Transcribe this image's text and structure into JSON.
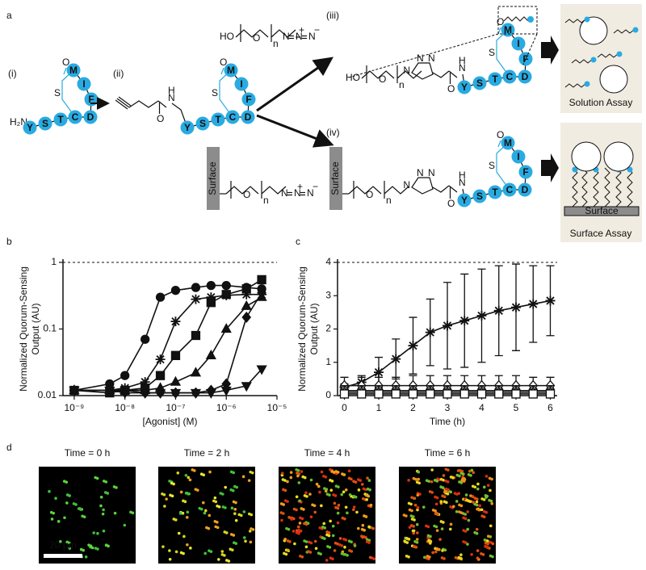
{
  "panel_a": {
    "label": "a",
    "steps": [
      "(i)",
      "(ii)",
      "(iii)",
      "(iv)"
    ],
    "residues": [
      "Y",
      "S",
      "T",
      "C",
      "D",
      "F",
      "I",
      "M"
    ],
    "amine": "H₂N",
    "hydroxyl": "HO",
    "oxygen": "O",
    "sulfur": "S",
    "repeat": "n",
    "nitrogen": "N",
    "hydrogen": "H",
    "plus": "+",
    "minus": "−",
    "surface": "Surface",
    "solution_assay": "Solution Assay",
    "surface_assay": "Surface Assay"
  },
  "chart_data": [
    {
      "type": "line",
      "label": "b",
      "xlabel": "[Agonist] (M)",
      "ylabel": [
        "Normalized Quorum-Sensing",
        "Output (AU)"
      ],
      "xscale": "log",
      "yscale": "log",
      "xlim": [
        6e-10,
        1e-05
      ],
      "ylim": [
        0.01,
        1
      ],
      "xticks": [
        {
          "value": 1e-09,
          "label": "10⁻⁹"
        },
        {
          "value": 1e-08,
          "label": "10⁻⁸"
        },
        {
          "value": 1e-07,
          "label": "10⁻⁷"
        },
        {
          "value": 1e-06,
          "label": "10⁻⁶"
        },
        {
          "value": 1e-05,
          "label": "10⁻⁵"
        }
      ],
      "yticks": [
        0.01,
        0.1,
        1
      ],
      "hline": 1,
      "color": "#111111",
      "x": [
        1e-09,
        5e-09,
        1e-08,
        2.5e-08,
        5e-08,
        1e-07,
        2.5e-07,
        5e-07,
        1e-06,
        2.5e-06,
        5e-06
      ],
      "series": [
        {
          "marker": "circle",
          "values": [
            0.012,
            0.015,
            0.02,
            0.07,
            0.3,
            0.38,
            0.42,
            0.45,
            0.45,
            0.42,
            0.4
          ]
        },
        {
          "marker": "star",
          "values": [
            0.012,
            0.012,
            0.013,
            0.016,
            0.035,
            0.13,
            0.28,
            0.3,
            0.32,
            0.33,
            0.33
          ]
        },
        {
          "marker": "square",
          "values": [
            0.012,
            0.011,
            0.012,
            0.013,
            0.02,
            0.04,
            0.08,
            0.25,
            0.33,
            0.4,
            0.55
          ]
        },
        {
          "marker": "triangle",
          "values": [
            0.012,
            0.012,
            0.012,
            0.012,
            0.013,
            0.016,
            0.022,
            0.04,
            0.1,
            0.22,
            0.3
          ]
        },
        {
          "marker": "diamond",
          "values": [
            0.012,
            0.012,
            0.012,
            0.011,
            0.011,
            0.011,
            0.011,
            0.012,
            0.015,
            0.15,
            0.35
          ]
        },
        {
          "marker": "triangle-down",
          "values": [
            0.012,
            0.012,
            0.011,
            0.011,
            0.011,
            0.011,
            0.011,
            0.011,
            0.012,
            0.014,
            0.025
          ]
        }
      ]
    },
    {
      "type": "line",
      "label": "c",
      "xlabel": "Time (h)",
      "ylabel": [
        "Normalized Quorum-Sensing",
        "Output (AU)"
      ],
      "xscale": "linear",
      "yscale": "linear",
      "xlim": [
        -0.2,
        6.2
      ],
      "ylim": [
        0,
        4
      ],
      "xticks": [
        0,
        1,
        2,
        3,
        4,
        5,
        6
      ],
      "yticks": [
        0,
        1,
        2,
        3,
        4
      ],
      "hline": 4,
      "color": "#111111",
      "x": [
        0,
        0.5,
        1,
        1.5,
        2,
        2.5,
        3,
        3.5,
        4,
        4.5,
        5,
        5.5,
        6
      ],
      "series": [
        {
          "marker": "star",
          "values": [
            0.25,
            0.4,
            0.7,
            1.1,
            1.5,
            1.9,
            2.1,
            2.25,
            2.4,
            2.55,
            2.65,
            2.75,
            2.85
          ],
          "errors": [
            0.1,
            0.2,
            0.45,
            0.6,
            0.85,
            1.0,
            1.3,
            1.4,
            1.4,
            1.35,
            1.3,
            1.15,
            1.05
          ]
        },
        {
          "marker": "diamond",
          "filled": false,
          "values": [
            0.3,
            0.3,
            0.3,
            0.3,
            0.3,
            0.3,
            0.3,
            0.3,
            0.3,
            0.3,
            0.3,
            0.3,
            0.3
          ],
          "errors": [
            0.25,
            0.25,
            0.25,
            0.25,
            0.3,
            0.3,
            0.3,
            0.3,
            0.3,
            0.3,
            0.3,
            0.25,
            0.25
          ]
        },
        {
          "marker": "circle",
          "filled": false,
          "values": [
            0.15,
            0.15,
            0.15,
            0.15,
            0.15,
            0.15,
            0.15,
            0.15,
            0.15,
            0.15,
            0.15,
            0.15,
            0.15
          ],
          "errors": [
            0.15,
            0.15,
            0.15,
            0.15,
            0.15,
            0.15,
            0.15,
            0.15,
            0.15,
            0.15,
            0.15,
            0.15,
            0.15
          ]
        },
        {
          "marker": "triangle",
          "filled": false,
          "values": [
            0.1,
            0.1,
            0.1,
            0.1,
            0.1,
            0.1,
            0.1,
            0.1,
            0.1,
            0.1,
            0.1,
            0.1,
            0.1
          ],
          "errors": [
            0.1,
            0.1,
            0.1,
            0.1,
            0.1,
            0.1,
            0.1,
            0.1,
            0.1,
            0.1,
            0.1,
            0.1,
            0.1
          ]
        },
        {
          "marker": "square",
          "filled": false,
          "values": [
            0.05,
            0.05,
            0.05,
            0.05,
            0.05,
            0.05,
            0.05,
            0.05,
            0.05,
            0.05,
            0.05,
            0.05,
            0.05
          ],
          "errors": [
            0.05,
            0.05,
            0.05,
            0.05,
            0.05,
            0.05,
            0.05,
            0.05,
            0.05,
            0.05,
            0.05,
            0.05,
            0.05
          ]
        }
      ]
    }
  ],
  "panel_d": {
    "label": "d",
    "titles": [
      "Time = 0 h",
      "Time = 2 h",
      "Time = 4 h",
      "Time = 6 h"
    ],
    "scale_bar": "20 μm"
  }
}
